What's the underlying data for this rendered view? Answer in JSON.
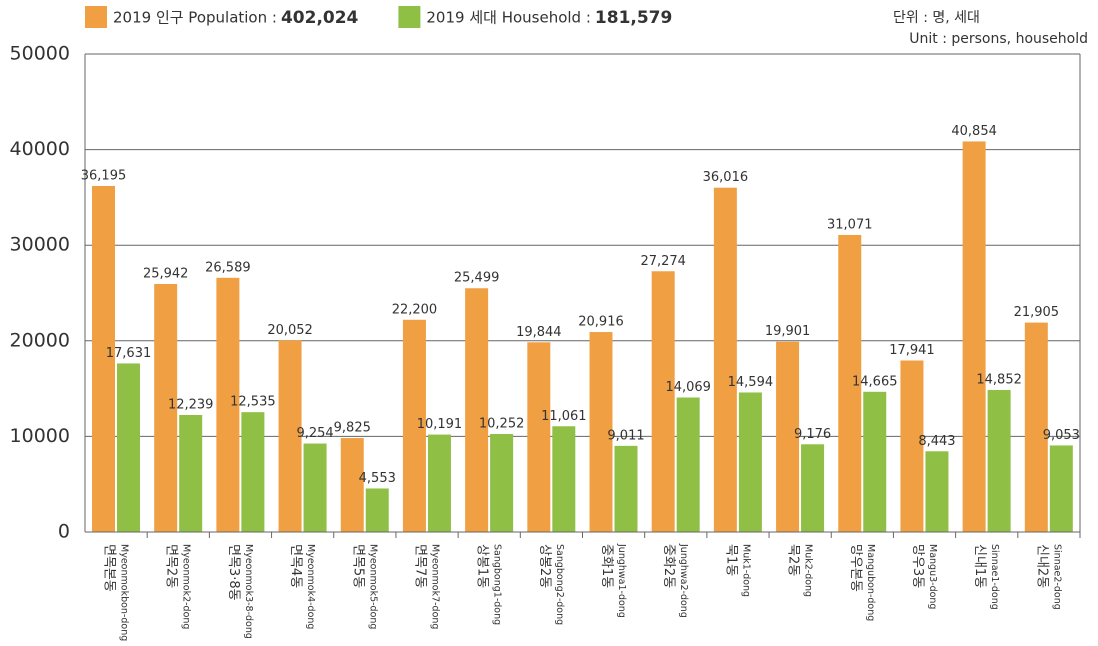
{
  "chart_data": {
    "type": "bar",
    "unit_note": [
      "단위 : 명, 세대",
      "Unit : persons, household"
    ],
    "categories": [
      "면목본동",
      "면목2동",
      "면목3·8동",
      "면목4동",
      "면목5동",
      "면목7동",
      "상봉1동",
      "상봉2동",
      "중화1동",
      "중화2동",
      "묵1동",
      "묵2동",
      "망우본동",
      "망우3동",
      "신내1동",
      "신내2동"
    ],
    "categories_en": [
      "Myeonmokbon-dong",
      "Myeonmok2-dong",
      "Myeonmok3-8-dong",
      "Myeonmok4-dong",
      "Myeonmok5-dong",
      "Myeonmok7-dong",
      "Sangbong1-dong",
      "Sangbong2-dong",
      "Junghwa1-dong",
      "Junghwa2-dong",
      "Muk1-dong",
      "Muk2-dong",
      "Mangubon-dong",
      "Mangu3-dong",
      "Sinnae1-dong",
      "Sinnae2-dong"
    ],
    "series": [
      {
        "name": "2019 인구 Population :",
        "total": "402,024",
        "color": "#f0a043",
        "values": [
          36195,
          25942,
          26589,
          20052,
          9825,
          22200,
          25499,
          19844,
          20916,
          27274,
          36016,
          19901,
          31071,
          17941,
          40854,
          21905
        ],
        "value_labels": [
          "36,195",
          "25,942",
          "26,589",
          "20,052",
          "9,825",
          "22,200",
          "25,499",
          "19,844",
          "20,916",
          "27,274",
          "36,016",
          "19,901",
          "31,071",
          "17,941",
          "40,854",
          "21,905"
        ]
      },
      {
        "name": "2019 세대 Household :",
        "total": "181,579",
        "color": "#8fbf45",
        "values": [
          17631,
          12239,
          12535,
          9254,
          4553,
          10191,
          10252,
          11061,
          9011,
          14069,
          14594,
          9176,
          14665,
          8443,
          14852,
          9053
        ],
        "value_labels": [
          "17,631",
          "12,239",
          "12,535",
          "9,254",
          "4,553",
          "10,191",
          "10,252",
          "11,061",
          "9,011",
          "14,069",
          "14,594",
          "9,176",
          "14,665",
          "8,443",
          "14,852",
          "9,053"
        ]
      }
    ],
    "ylim": [
      0,
      50000
    ],
    "yticks": [
      0,
      10000,
      20000,
      30000,
      40000,
      50000
    ],
    "grid": true
  }
}
